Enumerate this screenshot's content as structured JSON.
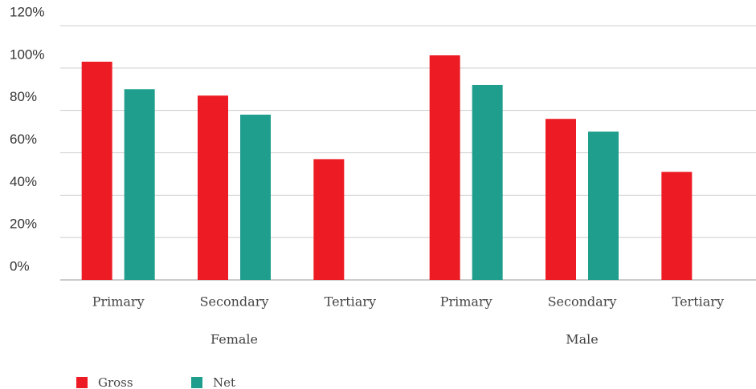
{
  "chart_data": {
    "type": "bar",
    "categories": [
      "Primary",
      "Secondary",
      "Tertiary",
      "Primary",
      "Secondary",
      "Tertiary"
    ],
    "groups": [
      "Female",
      "Male"
    ],
    "series": [
      {
        "name": "Gross",
        "color": "#ed1c24",
        "values": [
          103,
          87,
          57,
          106,
          76,
          51
        ]
      },
      {
        "name": "Net",
        "color": "#1f9e8e",
        "values": [
          90,
          78,
          null,
          92,
          70,
          null
        ]
      }
    ],
    "ylim": [
      0,
      120
    ],
    "yticks": [
      {
        "value": 0,
        "label": "0%"
      },
      {
        "value": 20,
        "label": "20%"
      },
      {
        "value": 40,
        "label": "40%"
      },
      {
        "value": 60,
        "label": "60%"
      },
      {
        "value": 80,
        "label": "80%"
      },
      {
        "value": 100,
        "label": "100%"
      },
      {
        "value": 120,
        "label": "120%"
      }
    ],
    "grid": true
  }
}
